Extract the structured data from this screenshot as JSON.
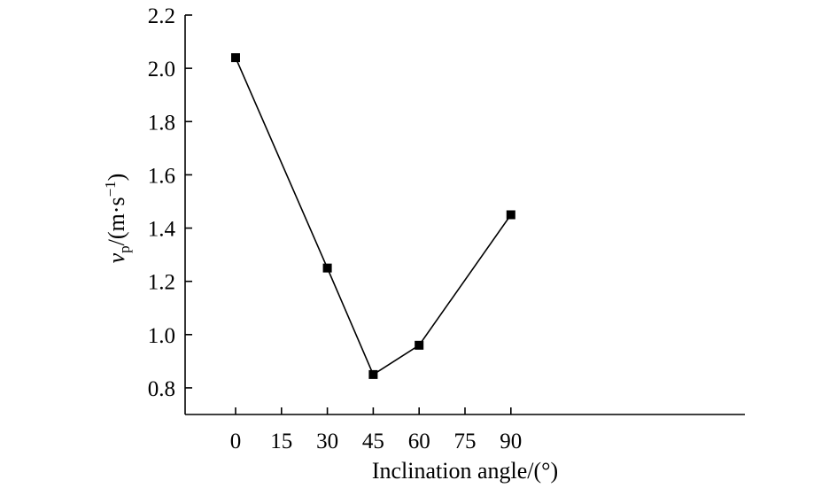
{
  "chart_data": {
    "type": "line",
    "title": "",
    "xlabel": "Inclination angle/(°)",
    "ylabel": {
      "var": "v",
      "sub": "p",
      "unit_prefix": "/(m·s",
      "unit_exp": "−1",
      "unit_suffix": ")"
    },
    "xlim": [
      -16.5,
      166.5
    ],
    "ylim": [
      0.7,
      2.2
    ],
    "xticks": [
      0,
      15,
      30,
      45,
      60,
      75,
      90
    ],
    "xtick_labels": [
      "0",
      "15",
      "30",
      "45",
      "60",
      "75",
      "90"
    ],
    "yticks": [
      0.8,
      1.0,
      1.2,
      1.4,
      1.6,
      1.8,
      2.0,
      2.2
    ],
    "ytick_labels": [
      "0.8",
      "1.0",
      "1.2",
      "1.4",
      "1.6",
      "1.8",
      "2.0",
      "2.2"
    ],
    "grid": false,
    "series": [
      {
        "name": "vp",
        "marker": "square",
        "color": "#000000",
        "x": [
          0,
          30,
          45,
          60,
          90
        ],
        "y": [
          2.04,
          1.25,
          0.85,
          0.96,
          1.45
        ]
      }
    ]
  }
}
